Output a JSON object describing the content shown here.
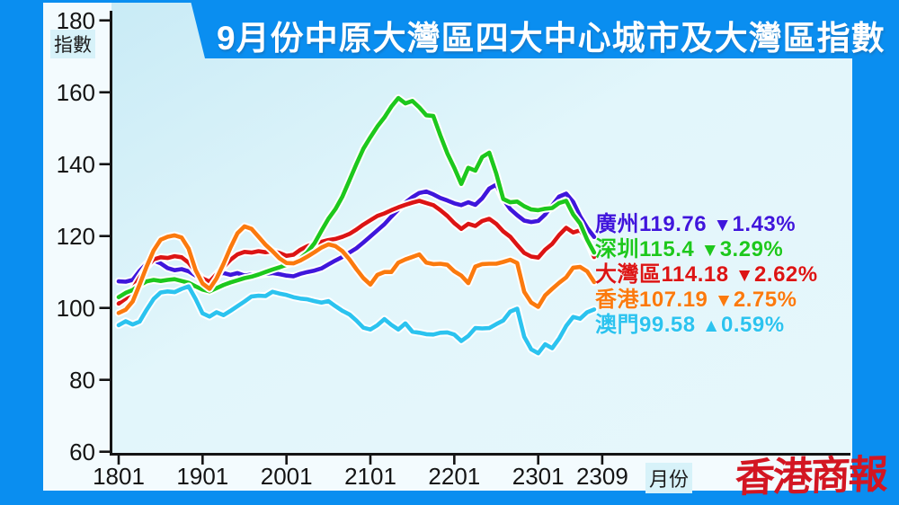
{
  "title": "9月份中原大灣區四大中心城市及大灣區指數",
  "watermark": "香港商報",
  "axes": {
    "y_unit_label": "指數",
    "x_unit_label": "月份",
    "y_ticks": [
      "180",
      "160",
      "140",
      "120",
      "100",
      "80",
      "60"
    ],
    "x_ticks": [
      "1801",
      "1901",
      "2001",
      "2101",
      "2201",
      "2301",
      "2309"
    ]
  },
  "legend": [
    {
      "id": "guangzhou",
      "name": "廣州",
      "value": "119.76",
      "arrow": "▼",
      "change": "1.43%",
      "color": "#3f16dc"
    },
    {
      "id": "shenzhen",
      "name": "深圳",
      "value": "115.4",
      "arrow": "▼",
      "change": "3.29%",
      "color": "#1dc81d"
    },
    {
      "id": "gba",
      "name": "大灣區",
      "value": "114.18",
      "arrow": "▼",
      "change": "2.62%",
      "color": "#dc1414"
    },
    {
      "id": "hongkong",
      "name": "香港",
      "value": "107.19",
      "arrow": "▼",
      "change": "2.75%",
      "color": "#fb7a0e"
    },
    {
      "id": "macau",
      "name": "澳門",
      "value": "99.58",
      "arrow": "▲",
      "change": "0.59%",
      "color": "#2cc3ef"
    }
  ],
  "chart_data": {
    "type": "line",
    "title": "9月份中原大灣區四大中心城市及大灣區指數",
    "xlabel": "月份",
    "ylabel": "指數",
    "ylim": [
      60,
      180
    ],
    "grid": false,
    "legend_position": "right-inline",
    "x_tick_labels": [
      "1801",
      "1901",
      "2001",
      "2101",
      "2201",
      "2301",
      "2309"
    ],
    "x_tick_month_indices": [
      0,
      12,
      24,
      36,
      48,
      60,
      68
    ],
    "months": [
      "1801",
      "1802",
      "1803",
      "1804",
      "1805",
      "1806",
      "1807",
      "1808",
      "1809",
      "1810",
      "1811",
      "1812",
      "1901",
      "1902",
      "1903",
      "1904",
      "1905",
      "1906",
      "1907",
      "1908",
      "1909",
      "1910",
      "1911",
      "1912",
      "2001",
      "2002",
      "2003",
      "2004",
      "2005",
      "2006",
      "2007",
      "2008",
      "2009",
      "2010",
      "2011",
      "2012",
      "2101",
      "2102",
      "2103",
      "2104",
      "2105",
      "2106",
      "2107",
      "2108",
      "2109",
      "2110",
      "2111",
      "2112",
      "2201",
      "2202",
      "2203",
      "2204",
      "2205",
      "2206",
      "2207",
      "2208",
      "2209",
      "2210",
      "2211",
      "2212",
      "2301",
      "2302",
      "2303",
      "2304",
      "2305",
      "2306",
      "2307",
      "2308",
      "2309"
    ],
    "series": [
      {
        "id": "guangzhou",
        "name": "廣州",
        "color": "#3f16dc",
        "final_value": 119.76,
        "change_pct": -1.43,
        "values": [
          107.4,
          107.3,
          107.8,
          110.3,
          112.3,
          113.2,
          112.4,
          111.1,
          110.5,
          110.8,
          110.2,
          109.0,
          108.0,
          107.7,
          109.3,
          109.7,
          109.2,
          109.7,
          109.0,
          109.3,
          109.2,
          109.5,
          109.7,
          109.4,
          109.0,
          108.8,
          109.5,
          110.0,
          110.4,
          111.0,
          112.1,
          113.2,
          114.2,
          115.4,
          116.6,
          118.2,
          119.9,
          121.6,
          123.3,
          125.4,
          127.4,
          129.3,
          130.8,
          132.0,
          132.4,
          131.6,
          130.6,
          129.9,
          129.1,
          128.6,
          129.4,
          128.7,
          130.5,
          133.2,
          134.3,
          130.2,
          127.5,
          125.8,
          124.3,
          123.9,
          124.2,
          126.0,
          128.5,
          131.0,
          131.8,
          129.5,
          125.5,
          122.3,
          119.76
        ]
      },
      {
        "id": "shenzhen",
        "name": "深圳",
        "color": "#1dc81d",
        "final_value": 115.4,
        "change_pct": -3.29,
        "values": [
          103.0,
          104.2,
          105.0,
          106.3,
          107.4,
          107.8,
          107.5,
          107.8,
          108.0,
          107.5,
          107.0,
          106.0,
          105.1,
          104.6,
          105.5,
          106.4,
          107.1,
          107.7,
          108.3,
          108.7,
          109.3,
          110.0,
          110.7,
          111.3,
          112.0,
          112.6,
          113.8,
          115.5,
          118.0,
          121.5,
          124.8,
          127.5,
          131.0,
          135.5,
          140.0,
          144.3,
          147.5,
          150.5,
          153.0,
          156.0,
          158.4,
          156.9,
          157.6,
          155.8,
          153.6,
          153.4,
          148.0,
          143.0,
          139.0,
          134.5,
          139.0,
          138.2,
          142.0,
          143.2,
          137.4,
          130.3,
          129.4,
          129.6,
          128.3,
          127.4,
          127.2,
          127.6,
          127.8,
          129.2,
          129.8,
          126.0,
          123.5,
          119.0,
          115.4
        ]
      },
      {
        "id": "gba",
        "name": "大灣區",
        "color": "#dc1414",
        "final_value": 114.18,
        "change_pct": -2.62,
        "values": [
          101.2,
          102.6,
          105.3,
          108.4,
          111.4,
          113.5,
          114.1,
          113.9,
          114.4,
          114.1,
          112.6,
          110.1,
          108.2,
          107.3,
          109.4,
          111.4,
          113.4,
          114.9,
          115.6,
          115.4,
          115.8,
          115.5,
          115.8,
          115.3,
          114.5,
          114.8,
          116.2,
          117.2,
          117.9,
          118.4,
          118.9,
          119.2,
          119.8,
          120.6,
          121.8,
          123.2,
          124.4,
          125.6,
          126.3,
          127.2,
          128.0,
          128.7,
          129.3,
          129.8,
          129.2,
          128.6,
          127.2,
          125.6,
          123.6,
          122.0,
          123.4,
          122.8,
          124.2,
          124.8,
          123.4,
          121.3,
          119.8,
          117.5,
          115.3,
          114.3,
          114.0,
          116.2,
          117.8,
          120.3,
          122.3,
          121.0,
          121.6,
          118.8,
          114.18
        ]
      },
      {
        "id": "hongkong",
        "name": "香港",
        "color": "#fb7a0e",
        "final_value": 107.19,
        "change_pct": -2.75,
        "values": [
          98.6,
          99.5,
          101.8,
          106.5,
          111.5,
          116.0,
          119.0,
          119.8,
          120.2,
          119.6,
          116.5,
          110.5,
          106.8,
          105.3,
          108.2,
          112.3,
          116.8,
          120.8,
          122.7,
          122.0,
          119.8,
          117.6,
          115.8,
          113.8,
          112.5,
          112.4,
          113.2,
          114.3,
          115.5,
          116.8,
          117.7,
          117.2,
          115.8,
          113.5,
          110.8,
          108.3,
          106.5,
          109.2,
          110.0,
          110.0,
          112.6,
          113.5,
          114.2,
          114.9,
          112.6,
          112.2,
          112.3,
          112.0,
          110.2,
          109.0,
          106.9,
          111.5,
          112.2,
          112.3,
          112.3,
          112.8,
          113.4,
          112.5,
          104.5,
          101.5,
          100.3,
          103.5,
          105.3,
          107.0,
          108.5,
          111.2,
          111.4,
          110.2,
          107.19
        ]
      },
      {
        "id": "macau",
        "name": "澳門",
        "color": "#2cc3ef",
        "final_value": 99.58,
        "change_pct": 0.59,
        "values": [
          95.2,
          96.3,
          95.4,
          96.2,
          99.5,
          102.5,
          104.3,
          104.6,
          104.4,
          105.3,
          106.0,
          102.5,
          98.5,
          97.6,
          98.8,
          98.0,
          99.2,
          100.5,
          101.8,
          103.2,
          103.4,
          103.3,
          104.5,
          104.0,
          103.6,
          103.0,
          102.6,
          102.4,
          101.9,
          101.5,
          101.9,
          100.5,
          99.2,
          98.2,
          96.5,
          94.5,
          94.0,
          95.2,
          96.9,
          95.3,
          94.0,
          95.7,
          93.4,
          93.1,
          92.7,
          92.6,
          93.1,
          93.2,
          92.6,
          90.8,
          92.2,
          94.4,
          94.3,
          94.4,
          95.5,
          96.5,
          99.0,
          99.8,
          92.0,
          88.5,
          87.4,
          89.9,
          88.8,
          91.5,
          95.0,
          97.5,
          97.0,
          98.8,
          99.58
        ]
      }
    ]
  }
}
